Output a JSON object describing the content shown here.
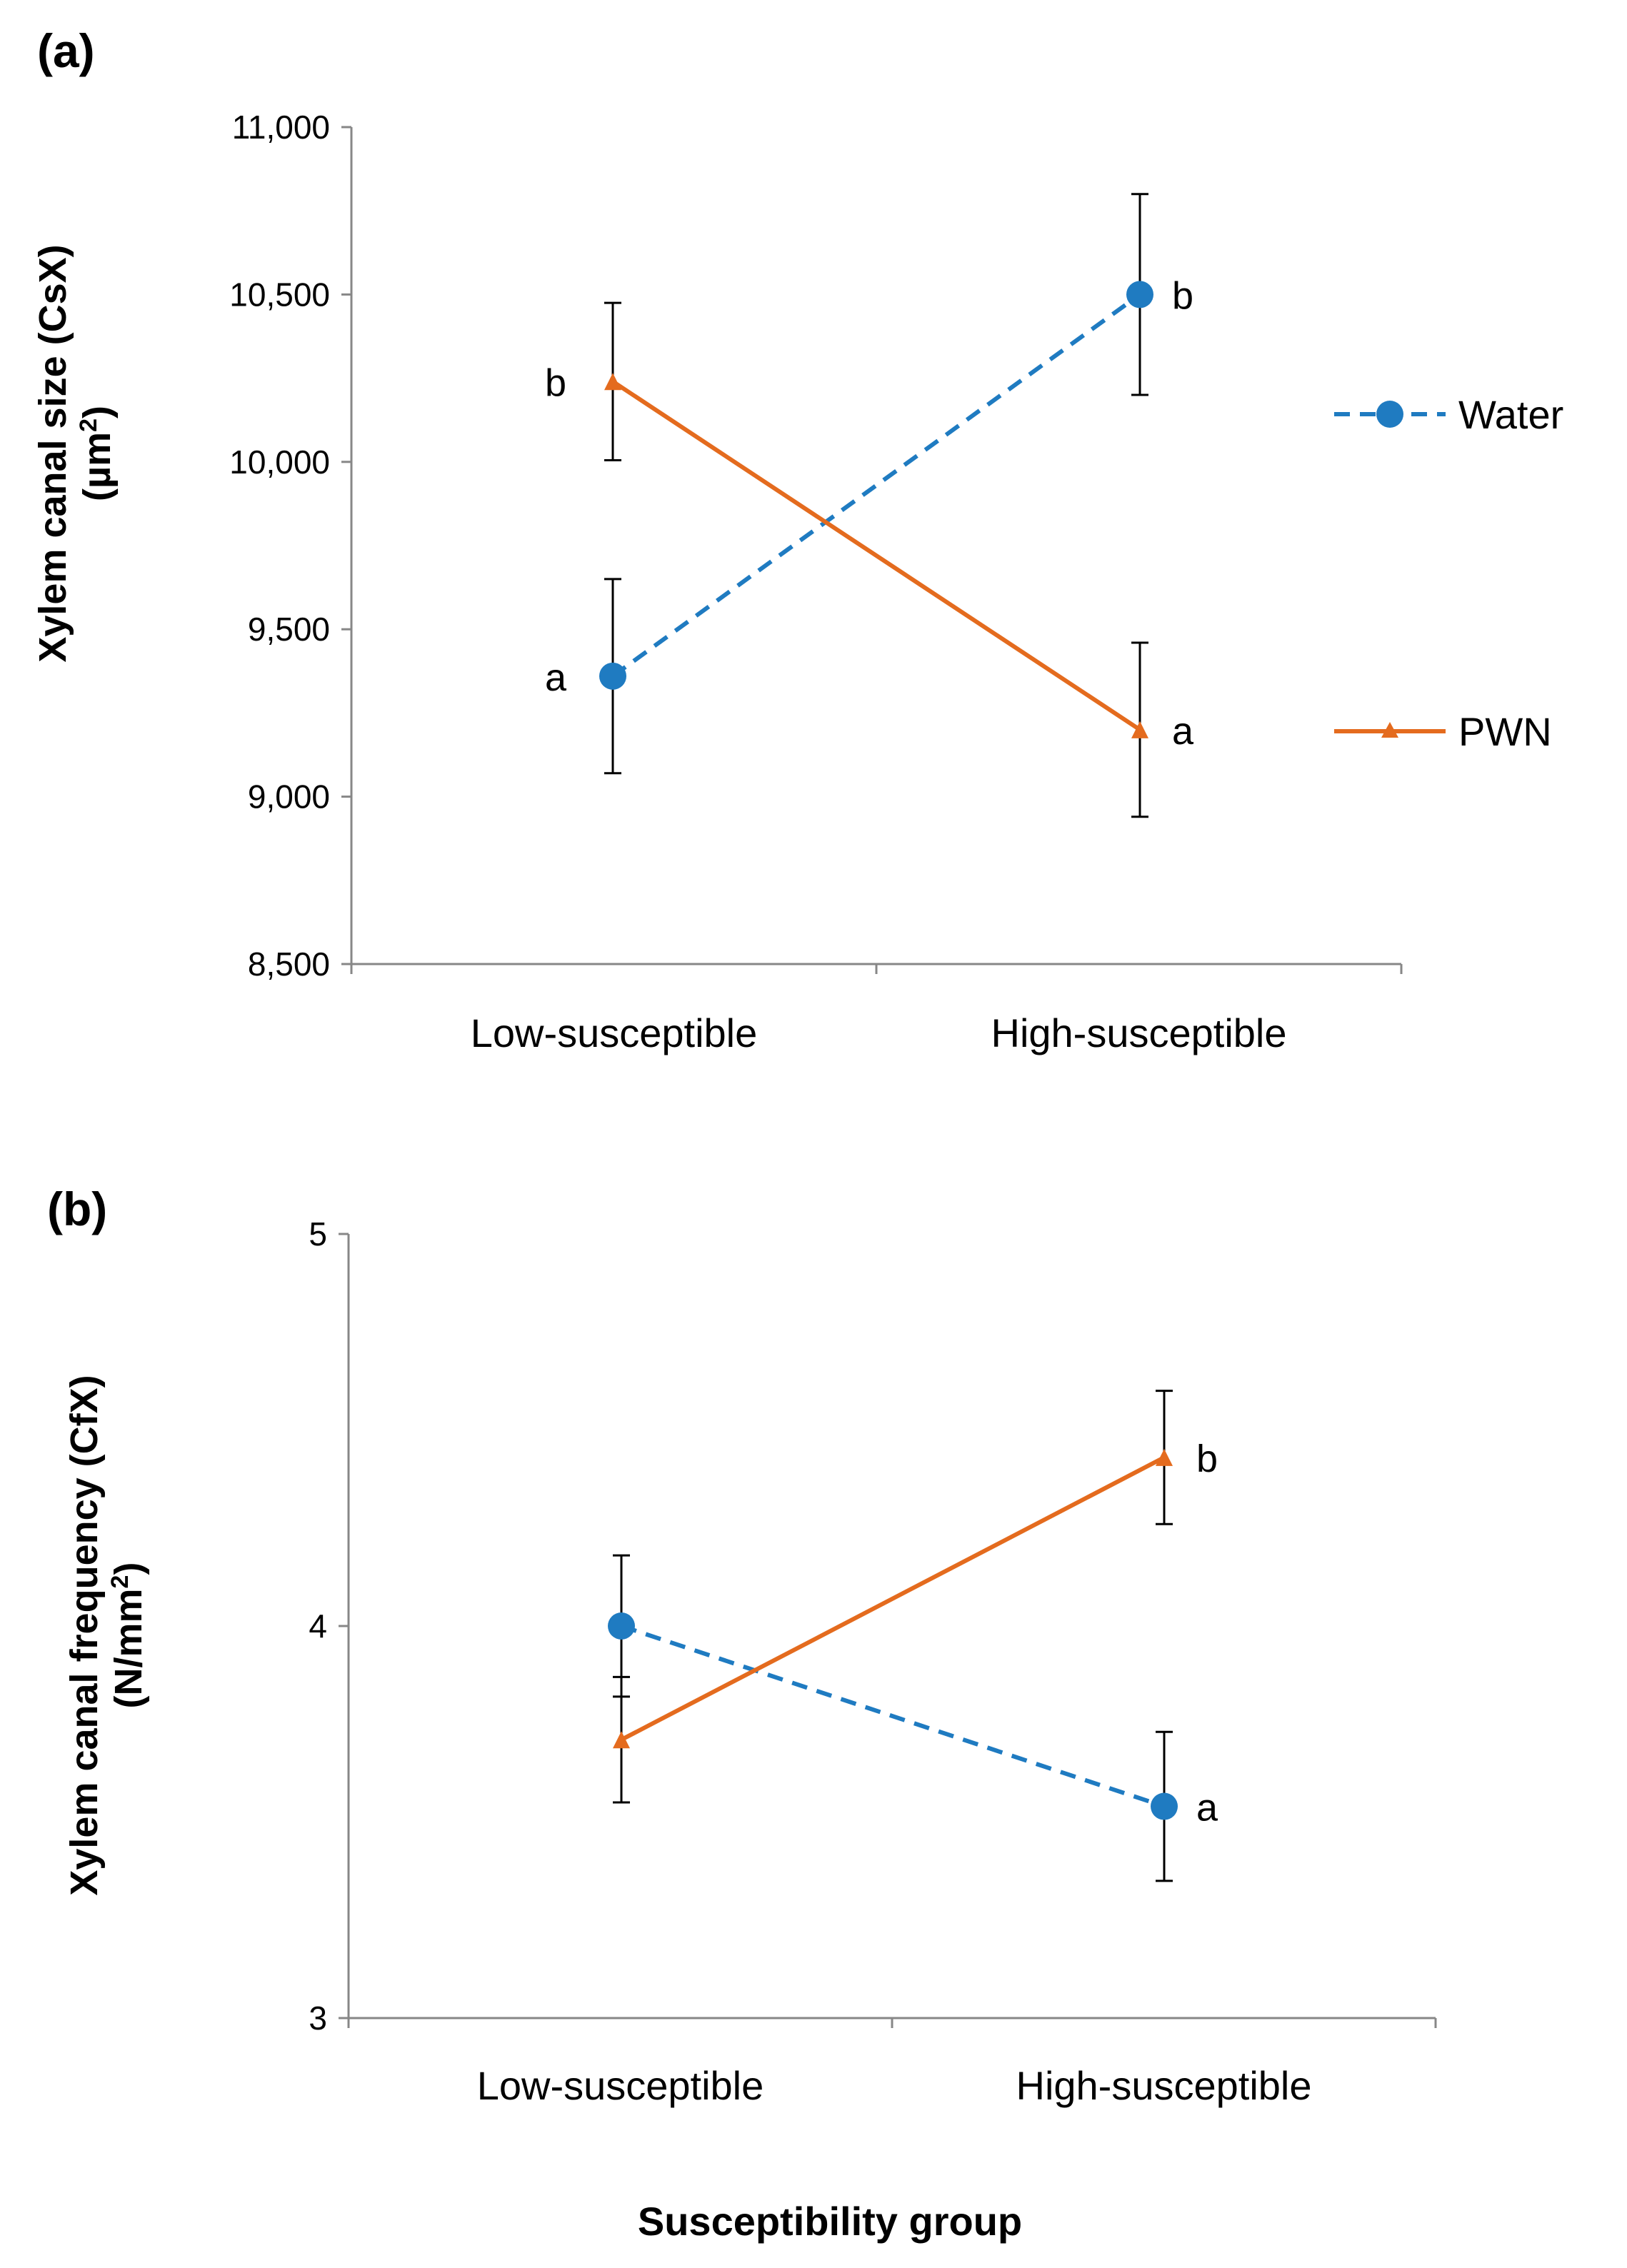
{
  "colors": {
    "water": "#1F7BC1",
    "pwn": "#E46B1E",
    "axis": "#878787",
    "errorbar": "#000000"
  },
  "legend": {
    "items": [
      {
        "name": "Water",
        "marker": "circle",
        "line": "dashed"
      },
      {
        "name": "PWN",
        "marker": "triangle",
        "line": "solid"
      }
    ]
  },
  "chart_data": [
    {
      "panel": "(a)",
      "type": "line",
      "title": "",
      "ylabel_line1": "Xylem canal size (CsX)",
      "ylabel_line2_pre": "(µm",
      "ylabel_line2_sup": "2",
      "ylabel_line2_post": ")",
      "xlabel": "",
      "ylim": [
        8500,
        11000
      ],
      "yticks": [
        8500,
        9000,
        9500,
        10000,
        10500,
        11000
      ],
      "ytick_labels": [
        "8,500",
        "9,000",
        "9,500",
        "10,000",
        "10,500",
        "11,000"
      ],
      "categories": [
        "Low-susceptible",
        "High-susceptible"
      ],
      "series": [
        {
          "name": "Water",
          "values": [
            9360,
            10500
          ],
          "errors": [
            290,
            300
          ],
          "letters": [
            "a",
            "b"
          ]
        },
        {
          "name": "PWN",
          "values": [
            10240,
            9200
          ],
          "errors": [
            235,
            260
          ],
          "letters": [
            "b",
            "a"
          ]
        }
      ]
    },
    {
      "panel": "(b)",
      "type": "line",
      "title": "",
      "ylabel_line1": "Xylem canal frequency (CfX)",
      "ylabel_line2_pre": "(N/mm",
      "ylabel_line2_sup": "2",
      "ylabel_line2_post": ")",
      "xlabel": "Susceptibility group",
      "ylim": [
        3,
        5
      ],
      "yticks": [
        3,
        4,
        5
      ],
      "ytick_labels": [
        "3",
        "4",
        "5"
      ],
      "categories": [
        "Low-susceptible",
        "High-susceptible"
      ],
      "series": [
        {
          "name": "Water",
          "values": [
            4.0,
            3.54
          ],
          "errors": [
            0.18,
            0.19
          ],
          "letters": [
            "",
            "a"
          ]
        },
        {
          "name": "PWN",
          "values": [
            3.71,
            4.43
          ],
          "errors": [
            0.16,
            0.17
          ],
          "letters": [
            "",
            "b"
          ]
        }
      ]
    }
  ]
}
